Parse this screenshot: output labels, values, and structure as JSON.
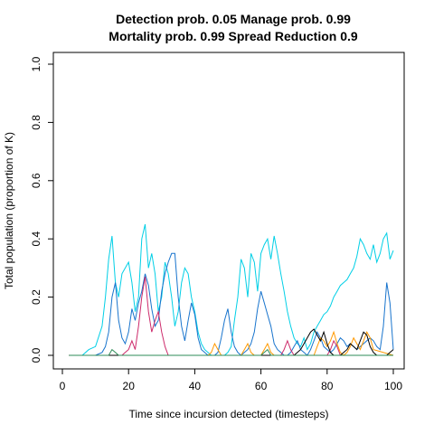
{
  "chart_data": {
    "type": "line",
    "title": "Detection prob. 0.05 Manage prob. 0.99",
    "subtitle": "Mortality prob. 0.99 Spread Reduction 0.9",
    "xlabel": "Time since incursion detected (timesteps)",
    "ylabel": "Total population (proportion of K)",
    "xlim": [
      0,
      100
    ],
    "ylim": [
      0,
      1
    ],
    "x_ticks": [
      "0",
      "20",
      "40",
      "60",
      "80",
      "100"
    ],
    "y_ticks": [
      "0.0",
      "0.2",
      "0.4",
      "0.6",
      "0.8",
      "1.0"
    ],
    "grid": false,
    "legend": "none",
    "series": [
      {
        "color": "#00cfe6",
        "x": [
          2,
          6,
          8,
          10,
          12,
          13,
          14,
          15,
          16,
          17,
          18,
          19,
          20,
          21,
          22,
          23,
          24,
          25,
          26,
          27,
          28,
          29,
          30,
          31,
          32,
          33,
          34,
          35,
          36,
          37,
          38,
          39,
          40,
          41,
          42,
          43,
          44,
          45,
          46,
          47,
          48,
          49,
          50,
          51,
          52,
          53,
          54,
          55,
          56,
          57,
          58,
          59,
          60,
          61,
          62,
          63,
          64,
          65,
          66,
          67,
          68,
          69,
          70,
          71,
          72,
          73,
          74,
          75,
          76,
          77,
          78,
          79,
          80,
          81,
          82,
          83,
          84,
          85,
          86,
          87,
          88,
          89,
          90,
          91,
          92,
          93,
          94,
          95,
          96,
          97,
          98,
          99,
          100
        ],
        "y": [
          0,
          0,
          0.02,
          0.03,
          0.1,
          0.2,
          0.33,
          0.41,
          0.25,
          0.2,
          0.28,
          0.3,
          0.32,
          0.25,
          0.15,
          0.2,
          0.4,
          0.45,
          0.3,
          0.35,
          0.28,
          0.15,
          0.2,
          0.32,
          0.28,
          0.2,
          0.1,
          0.15,
          0.25,
          0.3,
          0.28,
          0.2,
          0.15,
          0.08,
          0.04,
          0.02,
          0.01,
          0,
          0,
          0,
          0,
          0,
          0.01,
          0.03,
          0.12,
          0.2,
          0.33,
          0.3,
          0.2,
          0.35,
          0.32,
          0.22,
          0.35,
          0.38,
          0.4,
          0.33,
          0.41,
          0.35,
          0.28,
          0.22,
          0.15,
          0.1,
          0.06,
          0.04,
          0.03,
          0.06,
          0.02,
          0.04,
          0.08,
          0.1,
          0.12,
          0.14,
          0.15,
          0.17,
          0.2,
          0.22,
          0.24,
          0.25,
          0.26,
          0.28,
          0.3,
          0.34,
          0.4,
          0.38,
          0.35,
          0.33,
          0.38,
          0.32,
          0.35,
          0.4,
          0.42,
          0.33,
          0.36
        ]
      },
      {
        "color": "#1874cd",
        "x": [
          2,
          10,
          12,
          13,
          14,
          15,
          16,
          17,
          18,
          19,
          20,
          21,
          22,
          23,
          24,
          25,
          26,
          27,
          28,
          29,
          30,
          31,
          32,
          33,
          34,
          35,
          36,
          37,
          38,
          39,
          40,
          41,
          42,
          43,
          44,
          45,
          46,
          47,
          48,
          49,
          50,
          51,
          52,
          53,
          54,
          55,
          56,
          57,
          58,
          59,
          60,
          61,
          62,
          63,
          64,
          65,
          66,
          67,
          68,
          69,
          70,
          71,
          72,
          73,
          74,
          75,
          76,
          77,
          78,
          79,
          80,
          81,
          82,
          83,
          84,
          85,
          86,
          87,
          88,
          89,
          90,
          91,
          92,
          93,
          94,
          95,
          96,
          97,
          98,
          99,
          100
        ],
        "y": [
          0,
          0,
          0.01,
          0.03,
          0.08,
          0.2,
          0.25,
          0.12,
          0.06,
          0.04,
          0.08,
          0.16,
          0.12,
          0.18,
          0.22,
          0.28,
          0.24,
          0.16,
          0.1,
          0.12,
          0.22,
          0.28,
          0.32,
          0.35,
          0.35,
          0.2,
          0.1,
          0.05,
          0.12,
          0.18,
          0.14,
          0.06,
          0.02,
          0.01,
          0,
          0,
          0,
          0.01,
          0.06,
          0.12,
          0.16,
          0.08,
          0.03,
          0.01,
          0,
          0.01,
          0.02,
          0.04,
          0.08,
          0.16,
          0.22,
          0.18,
          0.14,
          0.1,
          0.04,
          0.02,
          0.01,
          0,
          0,
          0.01,
          0.03,
          0.05,
          0.02,
          0.01,
          0,
          0.02,
          0.05,
          0.08,
          0.06,
          0.03,
          0.02,
          0.01,
          0.02,
          0.04,
          0.06,
          0.05,
          0.03,
          0.04,
          0.03,
          0.02,
          0.03,
          0.04,
          0.05,
          0.06,
          0.05,
          0.03,
          0.02,
          0.1,
          0.25,
          0.18,
          0.02
        ]
      },
      {
        "color": "#cd2b6b",
        "x": [
          2,
          18,
          19,
          20,
          21,
          22,
          23,
          24,
          25,
          26,
          27,
          28,
          29,
          30,
          31,
          32,
          34,
          66,
          67,
          68,
          69,
          70,
          72,
          80,
          81,
          82,
          83,
          84,
          100
        ],
        "y": [
          0,
          0,
          0.01,
          0.02,
          0.05,
          0.02,
          0.1,
          0.2,
          0.27,
          0.15,
          0.08,
          0.12,
          0.15,
          0.08,
          0.03,
          0,
          0,
          0,
          0.02,
          0.05,
          0.02,
          0,
          0,
          0,
          0.02,
          0.05,
          0.03,
          0,
          0
        ]
      },
      {
        "color": "#ff9900",
        "x": [
          2,
          44,
          45,
          46,
          47,
          48,
          54,
          55,
          56,
          57,
          58,
          60,
          61,
          62,
          63,
          64,
          76,
          77,
          78,
          79,
          80,
          81,
          82,
          83,
          84,
          85,
          86,
          87,
          88,
          89,
          90,
          91,
          92,
          93,
          94,
          100
        ],
        "y": [
          0,
          0,
          0.01,
          0.04,
          0.02,
          0,
          0,
          0.02,
          0.04,
          0.01,
          0,
          0,
          0.02,
          0.04,
          0.01,
          0,
          0,
          0.03,
          0.06,
          0.05,
          0.03,
          0.05,
          0.08,
          0.04,
          0.01,
          0,
          0.01,
          0.03,
          0.06,
          0.04,
          0.02,
          0.05,
          0.08,
          0.06,
          0.02,
          0
        ]
      },
      {
        "color": "#000000",
        "x": [
          2,
          70,
          71,
          72,
          73,
          74,
          75,
          76,
          77,
          78,
          79,
          80,
          81,
          82,
          84,
          85,
          86,
          87,
          88,
          89,
          90,
          91,
          92,
          93,
          94,
          95,
          96,
          97,
          98,
          99,
          100
        ],
        "y": [
          0,
          0,
          0.01,
          0.02,
          0.04,
          0.06,
          0.08,
          0.09,
          0.07,
          0.05,
          0.08,
          0.04,
          0.01,
          0,
          0,
          0.01,
          0.02,
          0.04,
          0.03,
          0.02,
          0.05,
          0.08,
          0.07,
          0.03,
          0.01,
          0,
          0,
          0,
          0,
          0.01,
          0.02
        ]
      },
      {
        "color": "#2e8b57",
        "x": [
          2,
          14,
          15,
          16,
          17,
          60,
          61,
          62,
          63,
          100
        ],
        "y": [
          0,
          0,
          0.02,
          0.01,
          0,
          0,
          0.01,
          0.02,
          0,
          0
        ]
      }
    ]
  }
}
